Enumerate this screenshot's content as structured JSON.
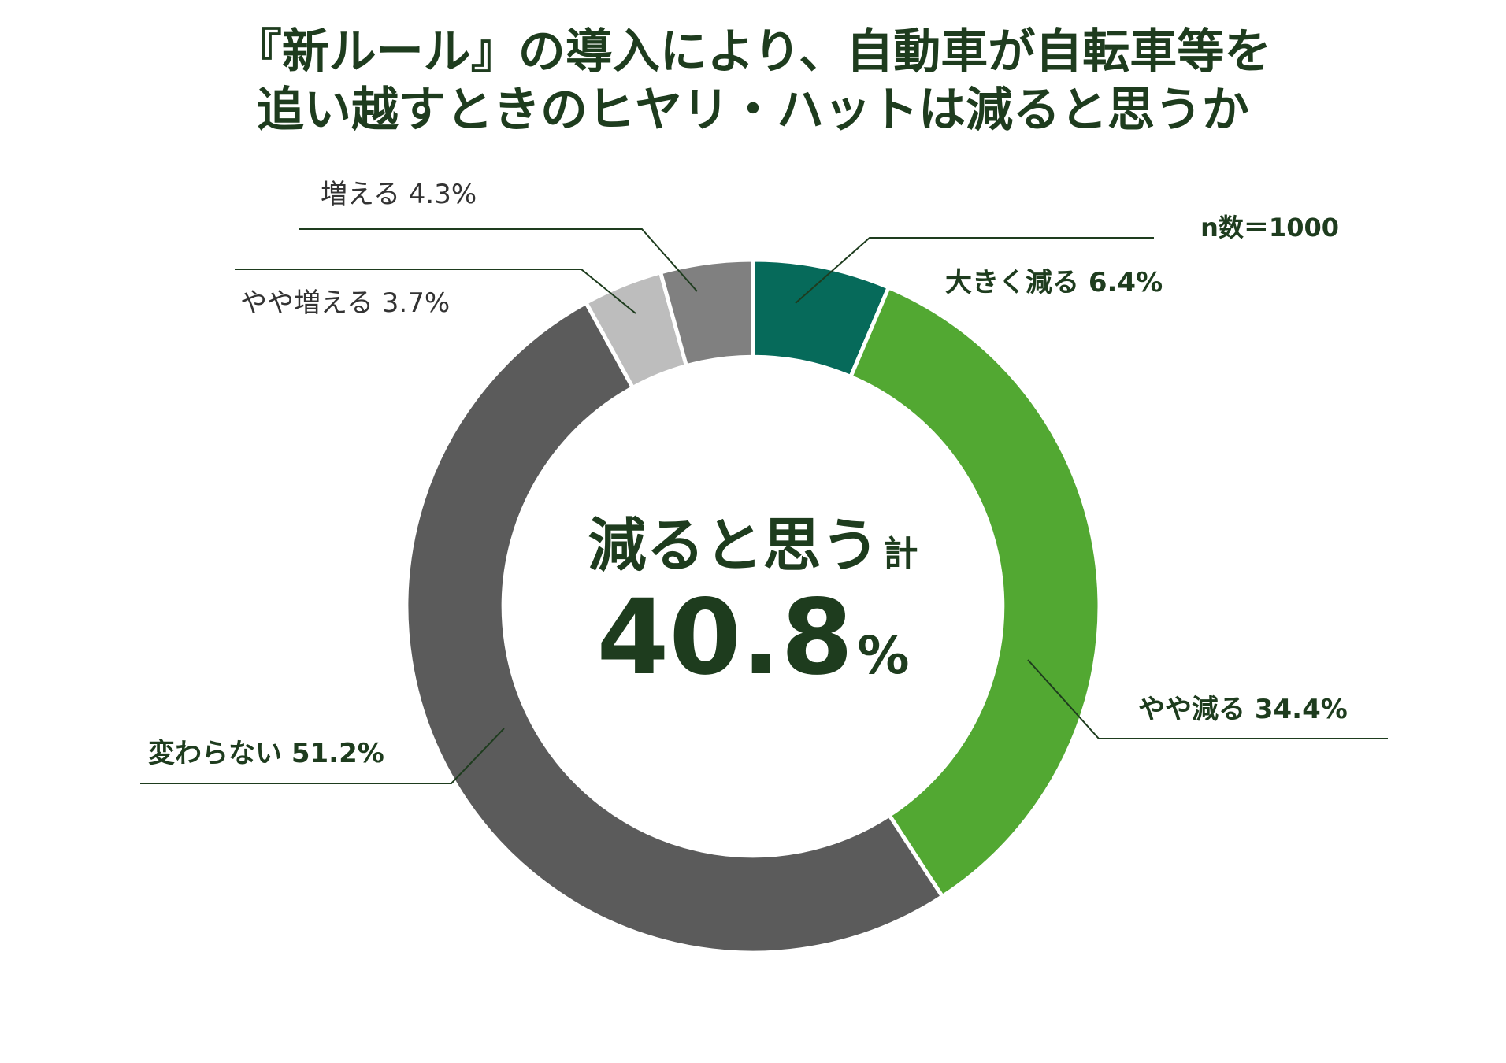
{
  "colors": {
    "title": "#1e3c1e",
    "text_dark": "#1e3c1e",
    "text_light": "#333333",
    "leader": "#1e3c1e"
  },
  "chart_data": {
    "type": "pie",
    "title_lines": [
      "『新ルール』の導入により、自動車が自転車等を",
      "追い越すときのヒヤリ・ハットは減ると思うか"
    ],
    "sample_size_label": "n数＝1000",
    "center": {
      "label": "減ると思う",
      "label_suffix": "計",
      "value": "40.8",
      "unit": "%"
    },
    "slices": [
      {
        "label": "大きく減る 6.4%",
        "value": 6.4,
        "color": "#066a5a"
      },
      {
        "label": "やや減る 34.4%",
        "value": 34.4,
        "color": "#52a832"
      },
      {
        "label": "変わらない 51.2%",
        "value": 51.2,
        "color": "#5b5b5b"
      },
      {
        "label": "やや増える 3.7%",
        "value": 3.7,
        "color": "#bdbdbd"
      },
      {
        "label": "増える 4.3%",
        "value": 4.3,
        "color": "#808080"
      }
    ],
    "hole_ratio": 0.72,
    "start_angle_deg": 0,
    "direction": "clockwise",
    "legend": "none"
  }
}
